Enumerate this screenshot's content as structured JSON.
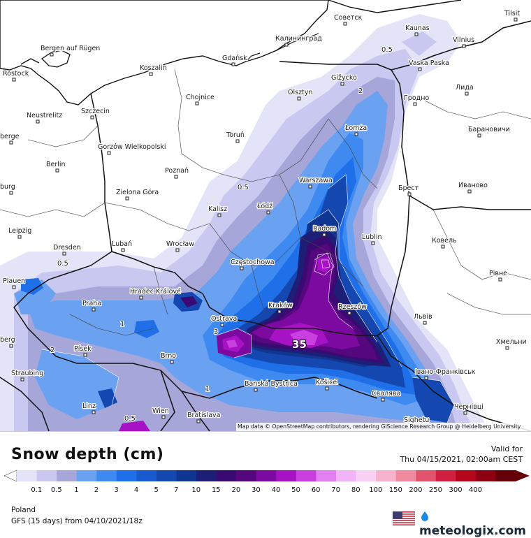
{
  "map": {
    "attribution": "Map data © OpenStreetMap contributors, rendering GIScience Research Group @ Heidelberg University",
    "max_value_label": "35",
    "contour_labels": [
      "0.5",
      "0.5",
      "0.5",
      "2",
      "2",
      "1",
      "1",
      "3",
      "1",
      "0.5"
    ],
    "cities": [
      {
        "name": "Rostock"
      },
      {
        "name": "Bergen auf Rügen"
      },
      {
        "name": "Koszalin"
      },
      {
        "name": "Gdańsk"
      },
      {
        "name": "Калининград"
      },
      {
        "name": "Советск"
      },
      {
        "name": "Kaunas"
      },
      {
        "name": "Vilnius"
      },
      {
        "name": "Vaska Paska"
      },
      {
        "name": "Gižycko"
      },
      {
        "name": "Olsztyn"
      },
      {
        "name": "Chojnice"
      },
      {
        "name": "Neustrelitz"
      },
      {
        "name": "Szczecin"
      },
      {
        "name": "Гродно"
      },
      {
        "name": "Лида"
      },
      {
        "name": "berge"
      },
      {
        "name": "Gorzów Wielkopolski"
      },
      {
        "name": "Toruń"
      },
      {
        "name": "Łomża"
      },
      {
        "name": "Барановичи"
      },
      {
        "name": "Berlin"
      },
      {
        "name": "Poznań"
      },
      {
        "name": "Warszawa"
      },
      {
        "name": "Брест"
      },
      {
        "name": "Иваново"
      },
      {
        "name": "burg"
      },
      {
        "name": "Zielona Góra"
      },
      {
        "name": "Kalisz"
      },
      {
        "name": "Łódź"
      },
      {
        "name": "Leipzig"
      },
      {
        "name": "Radom"
      },
      {
        "name": "Lublin"
      },
      {
        "name": "Ковель"
      },
      {
        "name": "Dresden"
      },
      {
        "name": "Lubań"
      },
      {
        "name": "Wrocław"
      },
      {
        "name": "Częstochowa"
      },
      {
        "name": "Рівне"
      },
      {
        "name": "Plauen"
      },
      {
        "name": "Hradec Králové"
      },
      {
        "name": "Praha"
      },
      {
        "name": "Kraków"
      },
      {
        "name": "Rzeszów"
      },
      {
        "name": "Львів"
      },
      {
        "name": "Ostrava"
      },
      {
        "name": "berg"
      },
      {
        "name": "Хмельни"
      },
      {
        "name": "Písek"
      },
      {
        "name": "Brno"
      },
      {
        "name": "Straubing"
      },
      {
        "name": "Banská Bystrica"
      },
      {
        "name": "Košice"
      },
      {
        "name": "Івано-Франківськ"
      },
      {
        "name": "Свалява"
      },
      {
        "name": "Linz"
      },
      {
        "name": "Wien"
      },
      {
        "name": "Bratislava"
      },
      {
        "name": "Чернівці"
      },
      {
        "name": "Sighetu"
      },
      {
        "name": "Tilsit"
      }
    ]
  },
  "legend": {
    "title": "Snow depth (cm)",
    "valid_label": "Valid for",
    "valid_time": "Thu 04/15/2021, 02:00am CEST",
    "ticks": [
      "0.1",
      "0.5",
      "1",
      "2",
      "3",
      "4",
      "5",
      "7",
      "10",
      "15",
      "20",
      "30",
      "40",
      "50",
      "60",
      "70",
      "80",
      "100",
      "150",
      "200",
      "250",
      "300",
      "400"
    ],
    "colors": [
      "#e4e4f9",
      "#c8c8f0",
      "#a6a6d8",
      "#6aa1f0",
      "#3f8af0",
      "#1f6fe8",
      "#1a5ad0",
      "#1447b0",
      "#0f3690",
      "#1d1e76",
      "#3a0a73",
      "#55087e",
      "#7d0aa0",
      "#a612c4",
      "#c93fe0",
      "#e280f2",
      "#f0b4f7",
      "#f7d2f4",
      "#f6b3cd",
      "#f08a9e",
      "#e2536e",
      "#d11f40",
      "#b5061c",
      "#8c0012",
      "#660008"
    ],
    "region": "Poland",
    "model": "GFS (15 days) from 04/10/2021/18z",
    "brand": "meteologix.com",
    "flag_icon": "us-flag-icon",
    "brand_icon": "meteologix-logo-icon"
  }
}
